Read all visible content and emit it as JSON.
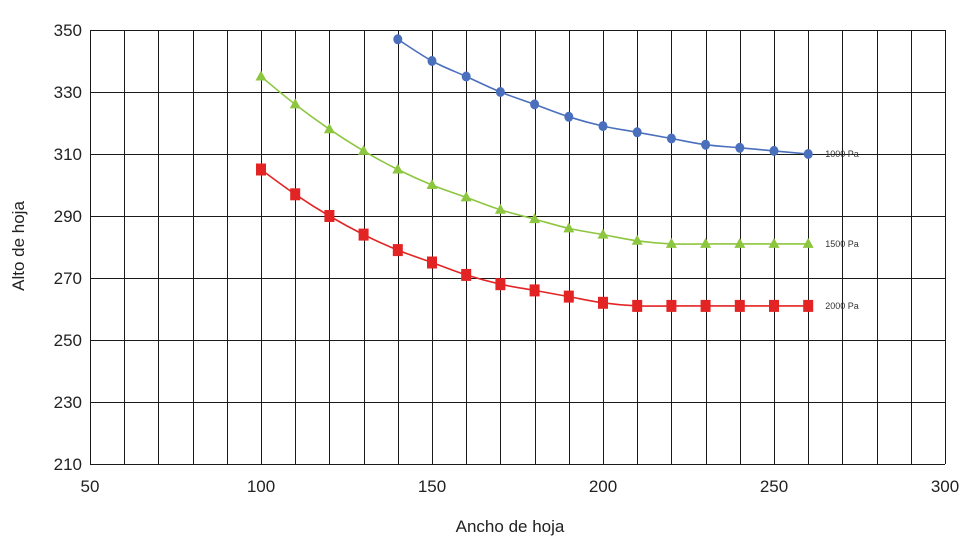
{
  "chart_data": {
    "type": "line",
    "title": "",
    "xlabel": "Ancho de hoja",
    "ylabel": "Alto de hoja",
    "xlim": [
      50,
      300
    ],
    "ylim": [
      210,
      350
    ],
    "x_ticks": [
      50,
      100,
      150,
      200,
      250,
      300
    ],
    "y_ticks": [
      210,
      230,
      250,
      270,
      290,
      310,
      330,
      350
    ],
    "grid": true,
    "legend": "labels at line ends (right)",
    "series": [
      {
        "name": "1000 Pa",
        "color": "#4a6fbd",
        "marker": "circle",
        "x": [
          140,
          150,
          160,
          170,
          180,
          190,
          200,
          210,
          220,
          230,
          240,
          250,
          260
        ],
        "y": [
          347,
          340,
          335,
          330,
          326,
          322,
          319,
          317,
          315,
          313,
          312,
          311,
          310
        ]
      },
      {
        "name": "1500 Pa",
        "color": "#8dc63f",
        "marker": "triangle",
        "x": [
          100,
          110,
          120,
          130,
          140,
          150,
          160,
          170,
          180,
          190,
          200,
          210,
          220,
          230,
          240,
          250,
          260
        ],
        "y": [
          335,
          326,
          318,
          311,
          305,
          300,
          296,
          292,
          289,
          286,
          284,
          282,
          281,
          281,
          281,
          281,
          281
        ]
      },
      {
        "name": "2000 Pa",
        "color": "#e32424",
        "marker": "square",
        "x": [
          100,
          110,
          120,
          130,
          140,
          150,
          160,
          170,
          180,
          190,
          200,
          210,
          220,
          230,
          240,
          250,
          260
        ],
        "y": [
          305,
          297,
          290,
          284,
          279,
          275,
          271,
          268,
          266,
          264,
          262,
          261,
          261,
          261,
          261,
          261,
          261
        ]
      }
    ]
  }
}
